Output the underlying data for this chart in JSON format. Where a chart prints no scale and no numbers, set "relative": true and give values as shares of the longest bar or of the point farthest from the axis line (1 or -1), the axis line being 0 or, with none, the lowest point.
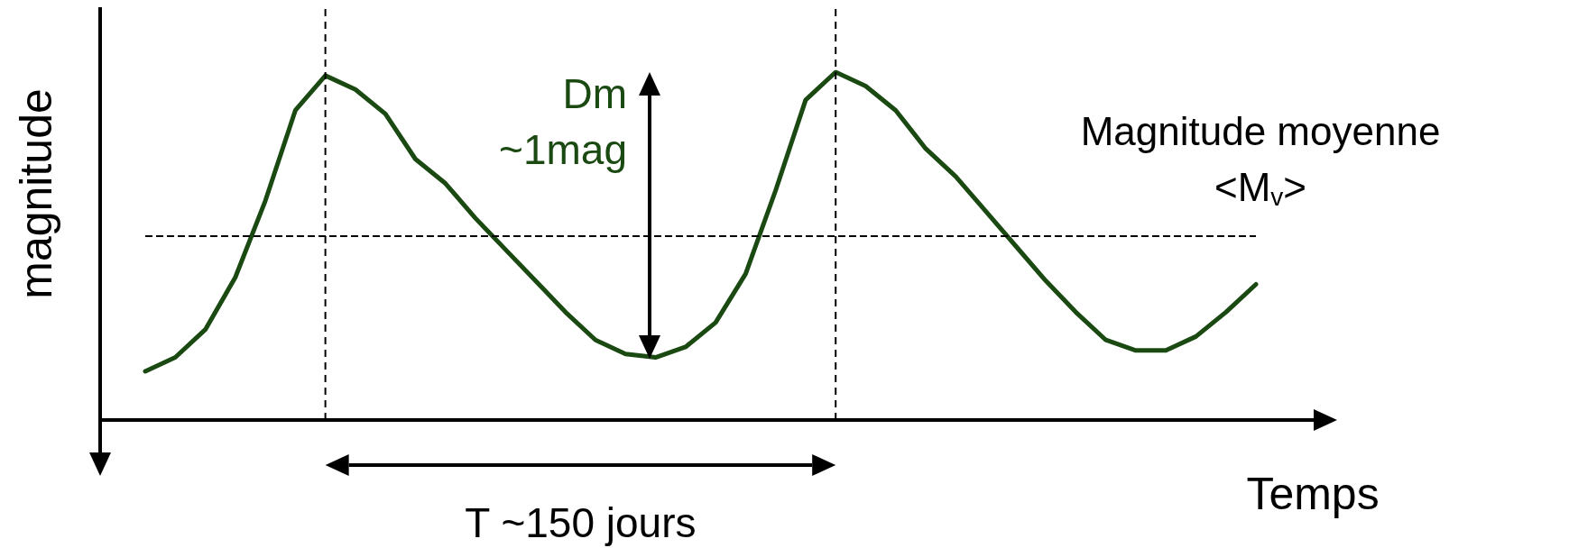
{
  "chart_data": {
    "type": "line",
    "relative": true,
    "xlabel": "Temps",
    "ylabel": "magnitude",
    "color": "#1a4a12",
    "marker": "none",
    "line_style": "solid",
    "categories": [
      null,
      null,
      null,
      null,
      null,
      null,
      null,
      null,
      null,
      null,
      null,
      null,
      null,
      null,
      null,
      null,
      null,
      null,
      null,
      null,
      null,
      null,
      null,
      null,
      null,
      null,
      null,
      null,
      null,
      null,
      null,
      null,
      null,
      null,
      null,
      null,
      null,
      null
    ],
    "values": [
      0.14,
      0.18,
      0.26,
      0.41,
      0.63,
      0.89,
      0.99,
      0.95,
      0.88,
      0.75,
      0.68,
      0.58,
      0.49,
      0.4,
      0.31,
      0.23,
      0.19,
      0.18,
      0.21,
      0.28,
      0.42,
      0.66,
      0.92,
      1,
      0.96,
      0.89,
      0.78,
      0.7,
      0.6,
      0.5,
      0.4,
      0.31,
      0.23,
      0.2,
      0.2,
      0.24,
      0.31,
      0.39
    ],
    "ref_lines": [
      {
        "axis": "y",
        "value": 0.53,
        "label": "Magnitude moyenne\n<M$_{v}$>",
        "line_style": "dashed",
        "color": "#000000"
      }
    ],
    "annotations": [
      "Dm\n~1mag",
      "T ~150 jours"
    ]
  }
}
